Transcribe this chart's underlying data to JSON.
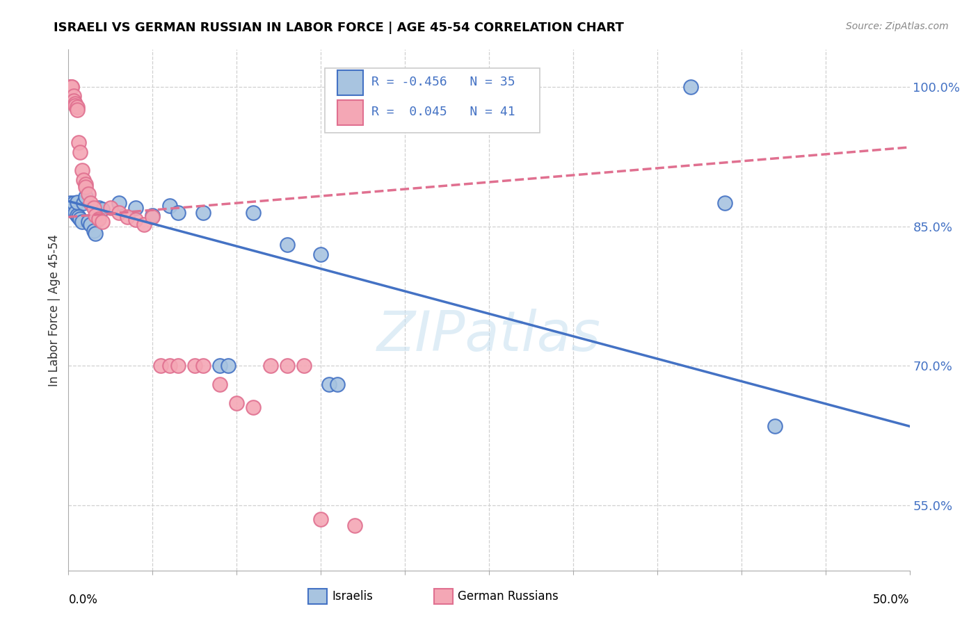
{
  "title": "ISRAELI VS GERMAN RUSSIAN IN LABOR FORCE | AGE 45-54 CORRELATION CHART",
  "source": "Source: ZipAtlas.com",
  "ylabel": "In Labor Force | Age 45-54",
  "watermark": "ZIPatlas",
  "xlim": [
    0.0,
    0.5
  ],
  "ylim": [
    0.48,
    1.04
  ],
  "ytick_vals": [
    0.55,
    0.7,
    0.85,
    1.0
  ],
  "ytick_labels": [
    "55.0%",
    "70.0%",
    "85.0%",
    "100.0%"
  ],
  "israeli_color": "#a8c4e0",
  "israeli_edge_color": "#4472c4",
  "german_color": "#f4a7b5",
  "german_edge_color": "#e07090",
  "israeli_line_color": "#4472c4",
  "german_line_color": "#e07090",
  "israeli_x": [
    0.001,
    0.002,
    0.002,
    0.003,
    0.003,
    0.004,
    0.005,
    0.005,
    0.006,
    0.007,
    0.008,
    0.009,
    0.01,
    0.012,
    0.013,
    0.015,
    0.016,
    0.018,
    0.02,
    0.03,
    0.04,
    0.05,
    0.06,
    0.065,
    0.08,
    0.09,
    0.095,
    0.11,
    0.13,
    0.15,
    0.155,
    0.16,
    0.37,
    0.39,
    0.42
  ],
  "israeli_y": [
    0.875,
    0.872,
    0.87,
    0.868,
    0.875,
    0.865,
    0.862,
    0.876,
    0.86,
    0.858,
    0.855,
    0.875,
    0.882,
    0.855,
    0.852,
    0.845,
    0.842,
    0.87,
    0.868,
    0.875,
    0.87,
    0.862,
    0.872,
    0.865,
    0.865,
    0.7,
    0.7,
    0.865,
    0.83,
    0.82,
    0.68,
    0.68,
    1.0,
    0.875,
    0.635
  ],
  "german_x": [
    0.001,
    0.001,
    0.002,
    0.002,
    0.003,
    0.003,
    0.004,
    0.004,
    0.005,
    0.005,
    0.006,
    0.007,
    0.008,
    0.009,
    0.01,
    0.01,
    0.012,
    0.013,
    0.015,
    0.016,
    0.018,
    0.02,
    0.025,
    0.03,
    0.035,
    0.04,
    0.045,
    0.05,
    0.055,
    0.06,
    0.065,
    0.075,
    0.08,
    0.09,
    0.1,
    0.11,
    0.12,
    0.13,
    0.14,
    0.15,
    0.17
  ],
  "german_y": [
    1.0,
    1.0,
    1.0,
    1.0,
    0.99,
    0.985,
    0.982,
    0.98,
    0.978,
    0.975,
    0.94,
    0.93,
    0.91,
    0.9,
    0.895,
    0.892,
    0.885,
    0.875,
    0.87,
    0.862,
    0.858,
    0.855,
    0.87,
    0.865,
    0.86,
    0.857,
    0.852,
    0.86,
    0.7,
    0.7,
    0.7,
    0.7,
    0.7,
    0.68,
    0.66,
    0.655,
    0.7,
    0.7,
    0.7,
    0.535,
    0.528
  ]
}
